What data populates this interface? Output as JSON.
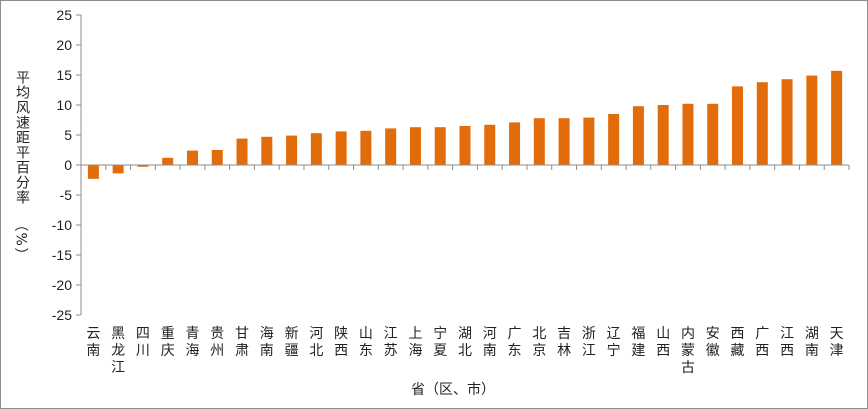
{
  "chart_data": {
    "type": "bar",
    "title": "",
    "xlabel": "省（区、市）",
    "ylabel": "平均风速距平百分率（%）",
    "ylim": [
      -25,
      25
    ],
    "yticks": [
      -25,
      -20,
      -15,
      -10,
      -5,
      0,
      5,
      10,
      15,
      20,
      25
    ],
    "grid": false,
    "legend": "none",
    "bar_color": "#e36c0a",
    "categories": [
      "云南",
      "黑龙江",
      "四川",
      "重庆",
      "青海",
      "贵州",
      "甘肃",
      "海南",
      "新疆",
      "河北",
      "陕西",
      "山东",
      "江苏",
      "上海",
      "宁夏",
      "湖北",
      "河南",
      "广东",
      "北京",
      "吉林",
      "浙江",
      "辽宁",
      "福建",
      "山西",
      "内蒙古",
      "安徽",
      "西藏",
      "广西",
      "江西",
      "湖南",
      "天津"
    ],
    "values": [
      -2.3,
      -1.4,
      -0.3,
      1.2,
      2.4,
      2.5,
      4.4,
      4.7,
      4.9,
      5.3,
      5.6,
      5.7,
      6.1,
      6.3,
      6.3,
      6.5,
      6.7,
      7.1,
      7.8,
      7.8,
      7.9,
      8.5,
      9.8,
      10.0,
      10.2,
      10.2,
      13.1,
      13.8,
      14.3,
      14.9,
      15.7
    ]
  }
}
